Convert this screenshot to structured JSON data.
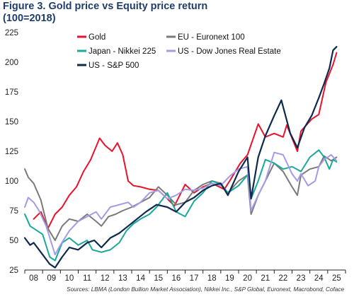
{
  "title_line1": "Figure 3. Gold price vs Equity price return",
  "title_line2": "(100=2018)",
  "source": "Sources: LBMA (London Bullion Market Association), Nikkei Inc., S&P Global, Euronext, Macrobond, Coface",
  "chart_data": {
    "type": "line",
    "title": "Figure 3. Gold price vs Equity price return (100=2018)",
    "xlabel": "",
    "ylabel": "",
    "x_ticks": [
      "08",
      "09",
      "10",
      "11",
      "12",
      "13",
      "14",
      "15",
      "16",
      "17",
      "18",
      "19",
      "20",
      "21",
      "22",
      "23",
      "24",
      "25"
    ],
    "y_ticks": [
      25,
      50,
      75,
      100,
      125,
      150,
      175,
      200,
      225
    ],
    "xlim": [
      2007.5,
      2025.5
    ],
    "ylim": [
      25,
      225
    ],
    "grid": false,
    "legend_position": "top",
    "series": [
      {
        "name": "Gold",
        "color": "#e8132b",
        "x": [
          2008.0,
          2008.4,
          2008.8,
          2009.2,
          2009.6,
          2010.0,
          2010.4,
          2010.8,
          2011.2,
          2011.7,
          2012.0,
          2012.4,
          2012.7,
          2013.0,
          2013.3,
          2013.6,
          2014.0,
          2014.5,
          2015.0,
          2015.5,
          2015.9,
          2016.5,
          2017.0,
          2017.5,
          2018.0,
          2018.7,
          2019.0,
          2019.6,
          2020.0,
          2020.6,
          2021.0,
          2021.5,
          2022.0,
          2022.2,
          2022.8,
          2023.0,
          2023.6,
          2024.0,
          2024.4,
          2024.8,
          2025.0
        ],
        "values": [
          68,
          74,
          60,
          72,
          78,
          88,
          95,
          108,
          118,
          136,
          130,
          125,
          132,
          122,
          100,
          96,
          95,
          93,
          92,
          85,
          79,
          97,
          90,
          95,
          98,
          93,
          100,
          115,
          122,
          148,
          137,
          140,
          137,
          147,
          125,
          142,
          152,
          156,
          183,
          198,
          208
        ]
      },
      {
        "name": "EU - Euronext 100",
        "color": "#7a7a7a",
        "x": [
          2007.5,
          2007.7,
          2008.0,
          2008.4,
          2008.8,
          2009.2,
          2009.6,
          2010.0,
          2010.5,
          2011.0,
          2011.5,
          2011.8,
          2012.2,
          2012.6,
          2013.0,
          2013.5,
          2014.0,
          2014.5,
          2015.0,
          2015.5,
          2016.0,
          2016.5,
          2017.0,
          2017.5,
          2018.0,
          2018.5,
          2018.9,
          2019.5,
          2020.0,
          2020.2,
          2020.6,
          2021.0,
          2021.5,
          2022.0,
          2022.5,
          2022.8,
          2023.0,
          2023.5,
          2024.0,
          2024.3,
          2024.7,
          2025.0
        ],
        "values": [
          110,
          103,
          98,
          84,
          60,
          50,
          62,
          68,
          66,
          72,
          66,
          62,
          70,
          72,
          75,
          78,
          82,
          86,
          95,
          88,
          80,
          82,
          92,
          97,
          100,
          98,
          90,
          100,
          105,
          72,
          88,
          100,
          115,
          108,
          95,
          88,
          105,
          110,
          112,
          121,
          117,
          120
        ]
      },
      {
        "name": "Japan - Nikkei 225",
        "color": "#1aa89a",
        "x": [
          2007.5,
          2007.8,
          2008.0,
          2008.5,
          2008.9,
          2009.2,
          2009.6,
          2010.0,
          2010.5,
          2011.0,
          2011.3,
          2011.8,
          2012.3,
          2012.8,
          2013.2,
          2013.6,
          2014.0,
          2014.5,
          2014.9,
          2015.5,
          2016.0,
          2016.5,
          2017.0,
          2017.5,
          2018.0,
          2018.5,
          2018.9,
          2019.5,
          2020.0,
          2020.2,
          2020.6,
          2021.0,
          2021.5,
          2022.0,
          2022.5,
          2023.0,
          2023.5,
          2024.0,
          2024.3,
          2024.6,
          2024.8,
          2025.0
        ],
        "values": [
          72,
          62,
          60,
          55,
          36,
          33,
          48,
          52,
          46,
          50,
          42,
          40,
          42,
          48,
          58,
          64,
          68,
          72,
          78,
          90,
          74,
          70,
          83,
          90,
          100,
          97,
          90,
          96,
          105,
          85,
          100,
          118,
          115,
          110,
          112,
          108,
          120,
          126,
          120,
          110,
          118,
          116
        ]
      },
      {
        "name": "US - Dow Jones Real Estate",
        "color": "#a39be6",
        "x": [
          2007.5,
          2007.7,
          2008.0,
          2008.3,
          2008.7,
          2009.2,
          2009.5,
          2010.0,
          2010.5,
          2011.0,
          2011.5,
          2011.8,
          2012.3,
          2012.8,
          2013.3,
          2013.6,
          2014.0,
          2014.5,
          2015.0,
          2015.5,
          2016.0,
          2016.5,
          2017.0,
          2017.5,
          2018.0,
          2018.5,
          2019.0,
          2019.5,
          2020.0,
          2020.2,
          2020.6,
          2021.0,
          2021.5,
          2022.0,
          2022.5,
          2022.8,
          2023.0,
          2023.4,
          2023.8,
          2024.0,
          2024.3,
          2024.7,
          2025.0
        ],
        "values": [
          78,
          86,
          82,
          75,
          62,
          38,
          46,
          58,
          66,
          70,
          74,
          68,
          78,
          80,
          82,
          78,
          82,
          90,
          92,
          85,
          88,
          93,
          92,
          94,
          98,
          96,
          104,
          110,
          112,
          75,
          88,
          100,
          124,
          122,
          106,
          100,
          106,
          96,
          100,
          112,
          118,
          122,
          117
        ]
      },
      {
        "name": "US - S&P 500",
        "color": "#0d2a4e",
        "x": [
          2007.5,
          2007.8,
          2008.0,
          2008.4,
          2008.9,
          2009.2,
          2009.6,
          2010.0,
          2010.5,
          2011.0,
          2011.4,
          2011.8,
          2012.3,
          2012.8,
          2013.3,
          2013.8,
          2014.3,
          2014.9,
          2015.5,
          2016.0,
          2016.5,
          2017.0,
          2017.5,
          2018.0,
          2018.5,
          2018.9,
          2019.5,
          2020.0,
          2020.2,
          2020.6,
          2021.0,
          2021.5,
          2021.9,
          2022.4,
          2022.8,
          2023.2,
          2023.6,
          2024.0,
          2024.3,
          2024.6,
          2024.8,
          2025.0
        ],
        "values": [
          52,
          46,
          48,
          40,
          30,
          27,
          36,
          44,
          42,
          48,
          50,
          44,
          52,
          56,
          62,
          68,
          74,
          80,
          78,
          74,
          82,
          86,
          92,
          96,
          98,
          88,
          108,
          120,
          85,
          120,
          138,
          155,
          168,
          140,
          128,
          145,
          155,
          170,
          182,
          195,
          210,
          213
        ]
      }
    ]
  }
}
